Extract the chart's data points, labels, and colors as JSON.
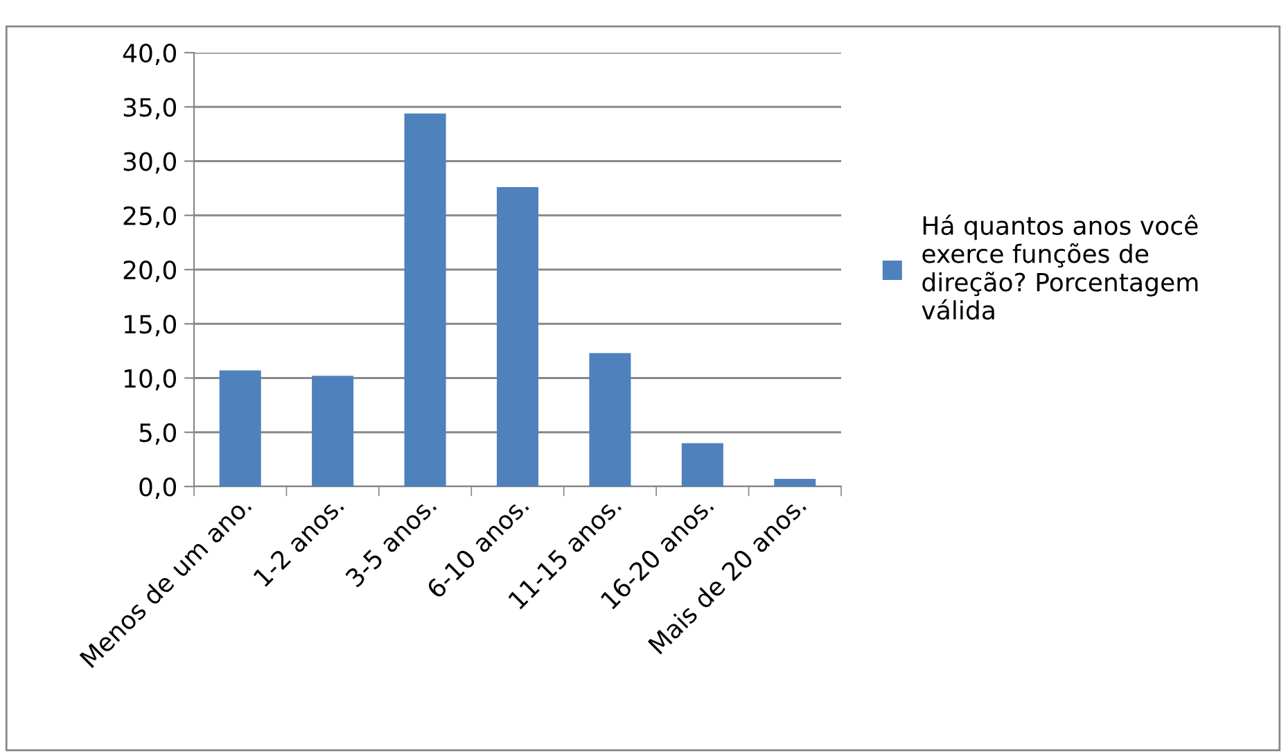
{
  "chart_data": {
    "type": "bar",
    "categories": [
      "Menos de um ano.",
      "1-2 anos.",
      "3-5 anos.",
      "6-10 anos.",
      "11-15 anos.",
      "16-20 anos.",
      "Mais de 20 anos."
    ],
    "series": [
      {
        "name": "Há quantos anos você exerce funções de direção? Porcentagem válida",
        "color": "#4f81bd",
        "values": [
          10.7,
          10.2,
          34.4,
          27.6,
          12.3,
          4.0,
          0.7
        ]
      }
    ],
    "ylim": [
      0,
      40
    ],
    "yticks": [
      {
        "value": 0,
        "label": "0,0"
      },
      {
        "value": 5,
        "label": "5,0"
      },
      {
        "value": 10,
        "label": "10,0"
      },
      {
        "value": 15,
        "label": "15,0"
      },
      {
        "value": 20,
        "label": "20,0"
      },
      {
        "value": 25,
        "label": "25,0"
      },
      {
        "value": 30,
        "label": "30,0"
      },
      {
        "value": 35,
        "label": "35,0"
      },
      {
        "value": 40,
        "label": "40,0"
      }
    ],
    "grid": "y",
    "legend": "right"
  }
}
